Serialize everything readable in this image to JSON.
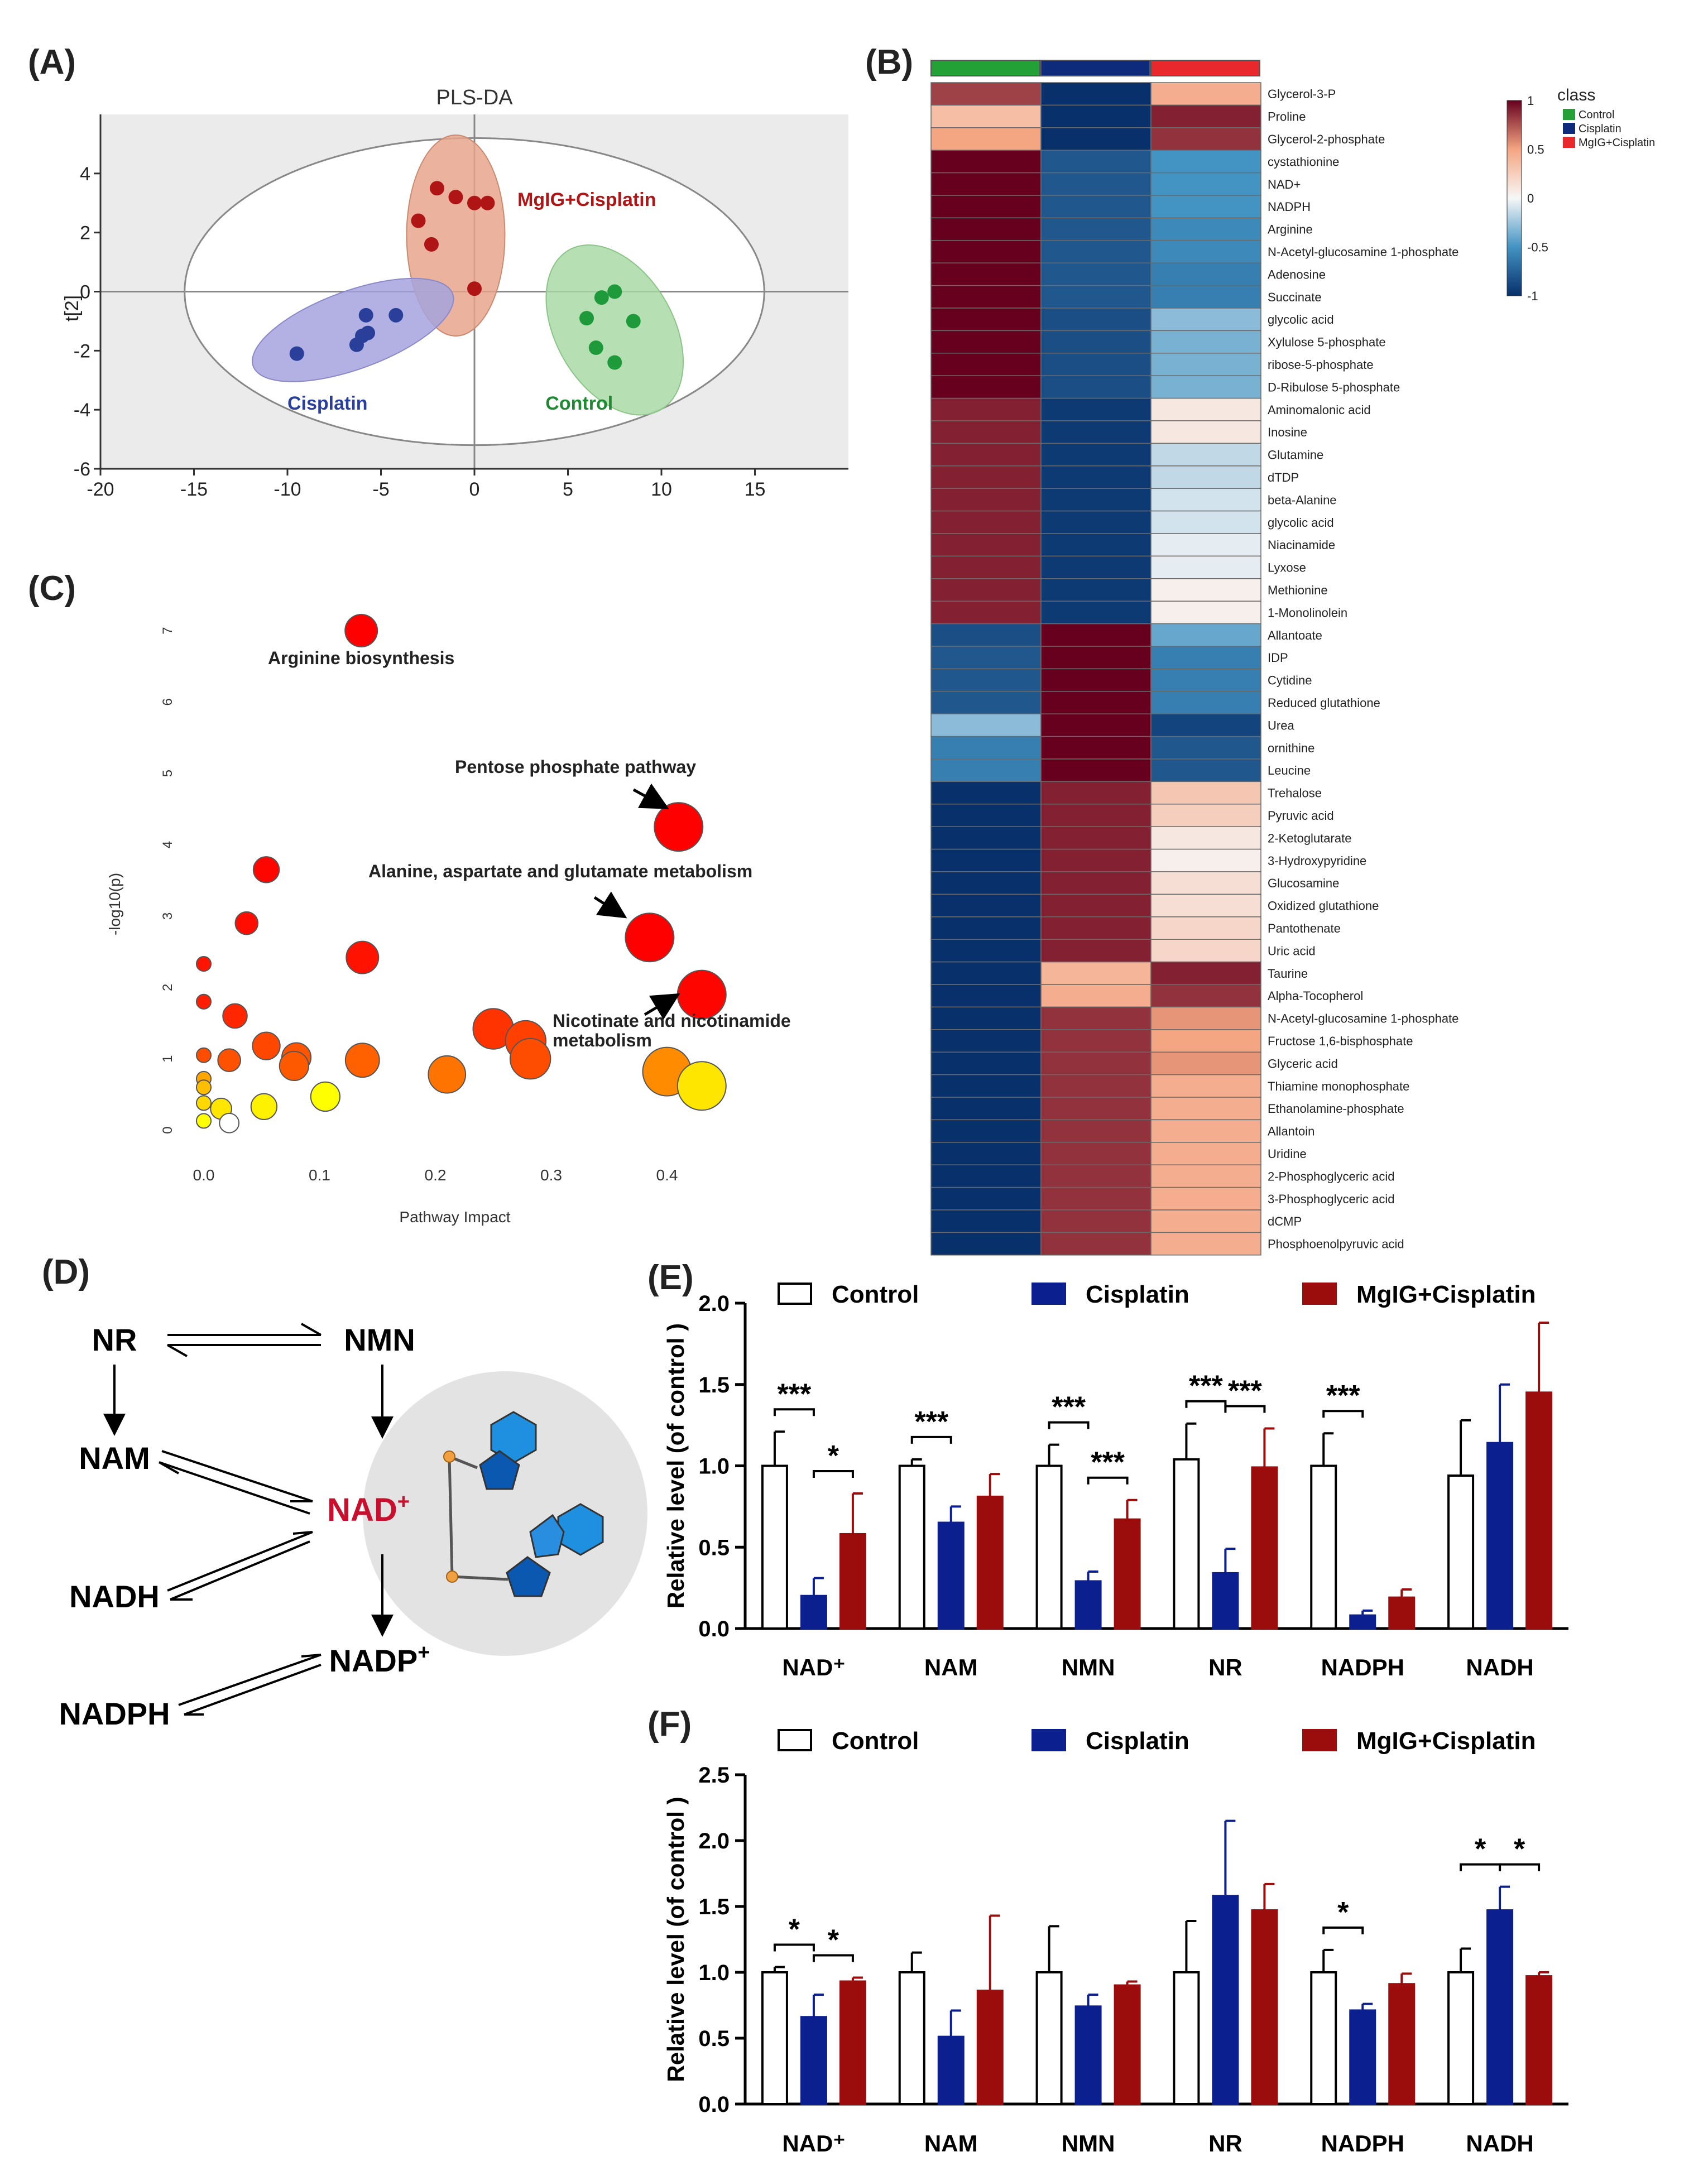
{
  "panels": {
    "A": "(A)",
    "B": "(B)",
    "C": "(C)",
    "D": "(D)",
    "E": "(E)",
    "F": "(F)"
  },
  "colors": {
    "control": "#ffffff",
    "cisplatin": "#0b1f8f",
    "mglg": "#9b0c0c",
    "ctrl_dot": "#1f9a3a",
    "cis_dot": "#2a3f9a",
    "mglg_dot": "#b01515",
    "ctrl_ell": "#a9dba6",
    "cis_ell": "#a6a3de",
    "mglg_ell": "#e8a58c"
  },
  "chart_data": [
    {
      "id": "A",
      "type": "scatter",
      "title": "PLS-DA",
      "xlabel": "",
      "ylabel": "t[2]",
      "xlim": [
        -20,
        20
      ],
      "ylim": [
        -6,
        6
      ],
      "xticks": [
        "-20",
        "-15",
        "-10",
        "-5",
        "0",
        "5",
        "10",
        "15"
      ],
      "yticks": [
        "-6",
        "-4",
        "-2",
        "0",
        "2",
        "4"
      ],
      "series": [
        {
          "name": "MgIG+Cisplatin",
          "points": [
            [
              -3,
              2.4
            ],
            [
              -2,
              3.5
            ],
            [
              -1,
              3.2
            ],
            [
              0,
              3.0
            ],
            [
              0.7,
              3.0
            ],
            [
              -2.3,
              1.6
            ],
            [
              0,
              0.1
            ]
          ]
        },
        {
          "name": "Cisplatin",
          "points": [
            [
              -9.5,
              -2.1
            ],
            [
              -5.8,
              -0.8
            ],
            [
              -4.2,
              -0.8
            ],
            [
              -6.0,
              -1.5
            ],
            [
              -5.7,
              -1.4
            ],
            [
              -6.3,
              -1.8
            ]
          ]
        },
        {
          "name": "Control",
          "points": [
            [
              6.8,
              -0.2
            ],
            [
              7.5,
              0
            ],
            [
              6.0,
              -0.9
            ],
            [
              8.5,
              -1.0
            ],
            [
              6.5,
              -1.9
            ],
            [
              7.5,
              -2.4
            ]
          ]
        }
      ]
    },
    {
      "id": "B",
      "type": "heatmap",
      "legend_title": "class",
      "legend_entries": [
        "Control",
        "Cisplatin",
        "MgIG+Cisplatin"
      ],
      "scale_ticks": [
        "1",
        "0.5",
        "0",
        "-0.5",
        "-1"
      ],
      "columns": [
        "Control",
        "Cisplatin",
        "MgIG+Cisplatin"
      ],
      "rows": [
        "Glycerol-3-P",
        "Proline",
        "Glycerol-2-phosphate",
        "cystathionine",
        "NAD+",
        "NADPH",
        "Arginine",
        "N-Acetyl-glucosamine 1-phosphate",
        "Adenosine",
        "Succinate",
        "glycolic acid",
        "Xylulose 5-phosphate",
        "ribose-5-phosphate",
        "D-Ribulose 5-phosphate",
        "Aminomalonic acid",
        "Inosine",
        "Glutamine",
        "dTDP",
        "beta-Alanine",
        "glycolic acid",
        "Niacinamide",
        "Lyxose",
        "Methionine",
        "1-Monolinolein",
        "Allantoate",
        "IDP",
        "Cytidine",
        "Reduced glutathione",
        "Urea",
        "ornithine",
        "Leucine",
        "Trehalose",
        "Pyruvic acid",
        "2-Ketoglutarate",
        "3-Hydroxypyridine",
        "Glucosamine",
        "Oxidized glutathione",
        "Pantothenate",
        "Uric acid",
        "Taurine",
        "Alpha-Tocopherol",
        "N-Acetyl-glucosamine 1-phosphate",
        "Fructose 1,6-bisphosphate",
        "Glyceric acid",
        "Thiamine monophosphate",
        "Ethanolamine-phosphate",
        "Allantoin",
        "Uridine",
        "2-Phosphoglyceric acid",
        "3-Phosphoglyceric acid",
        "dCMP",
        "Phosphoenolpyruvic acid"
      ],
      "values": [
        [
          0.8,
          -1,
          0.45
        ],
        [
          0.35,
          -1,
          0.9
        ],
        [
          0.5,
          -1,
          0.85
        ],
        [
          1,
          -0.8,
          -0.5
        ],
        [
          1,
          -0.8,
          -0.5
        ],
        [
          1,
          -0.8,
          -0.5
        ],
        [
          1,
          -0.8,
          -0.55
        ],
        [
          1,
          -0.8,
          -0.55
        ],
        [
          1,
          -0.8,
          -0.6
        ],
        [
          1,
          -0.8,
          -0.6
        ],
        [
          1,
          -0.85,
          -0.3
        ],
        [
          1,
          -0.85,
          -0.35
        ],
        [
          1,
          -0.85,
          -0.35
        ],
        [
          1,
          -0.85,
          -0.35
        ],
        [
          0.9,
          -0.95,
          0.1
        ],
        [
          0.9,
          -0.95,
          0.1
        ],
        [
          0.9,
          -0.95,
          -0.15
        ],
        [
          0.9,
          -0.95,
          -0.15
        ],
        [
          0.9,
          -0.95,
          -0.1
        ],
        [
          0.9,
          -0.95,
          -0.1
        ],
        [
          0.9,
          -0.95,
          -0.05
        ],
        [
          0.9,
          -0.95,
          -0.05
        ],
        [
          0.9,
          -0.95,
          0.05
        ],
        [
          0.9,
          -0.95,
          0.05
        ],
        [
          -0.85,
          1,
          -0.4
        ],
        [
          -0.8,
          1,
          -0.6
        ],
        [
          -0.8,
          1,
          -0.6
        ],
        [
          -0.8,
          1,
          -0.6
        ],
        [
          -0.3,
          1,
          -0.9
        ],
        [
          -0.6,
          1,
          -0.8
        ],
        [
          -0.6,
          1,
          -0.8
        ],
        [
          -1,
          0.9,
          0.3
        ],
        [
          -1,
          0.9,
          0.25
        ],
        [
          -1,
          0.9,
          0.1
        ],
        [
          -1,
          0.9,
          0.05
        ],
        [
          -1,
          0.9,
          0.15
        ],
        [
          -1,
          0.9,
          0.15
        ],
        [
          -1,
          0.9,
          0.2
        ],
        [
          -1,
          0.9,
          0.2
        ],
        [
          -1,
          0.4,
          0.9
        ],
        [
          -1,
          0.45,
          0.85
        ],
        [
          -1,
          0.85,
          0.55
        ],
        [
          -1,
          0.85,
          0.5
        ],
        [
          -1,
          0.85,
          0.55
        ],
        [
          -1,
          0.85,
          0.45
        ],
        [
          -1,
          0.85,
          0.45
        ],
        [
          -1,
          0.85,
          0.45
        ],
        [
          -1,
          0.85,
          0.45
        ],
        [
          -1,
          0.85,
          0.45
        ],
        [
          -1,
          0.85,
          0.45
        ],
        [
          -1,
          0.85,
          0.45
        ],
        [
          -1,
          0.85,
          0.45
        ]
      ]
    },
    {
      "id": "C",
      "type": "scatter",
      "xlabel": "Pathway Impact",
      "ylabel": "-log10(p)",
      "xlim": [
        0,
        0.45
      ],
      "ylim": [
        0,
        7
      ],
      "xticks": [
        "0.0",
        "0.1",
        "0.2",
        "0.3",
        "0.4"
      ],
      "yticks": [
        "0",
        "1",
        "2",
        "3",
        "4",
        "5",
        "6",
        "7"
      ],
      "annotations": [
        "Arginine biosynthesis",
        "Pentose phosphate pathway",
        "Alanine, aspartate and glutamate metabolism",
        "Nicotinate and nicotinamide",
        "metabolism"
      ],
      "points": [
        {
          "x": 0.136,
          "y": 7.0,
          "r": 20,
          "c": 0.0
        },
        {
          "x": 0.41,
          "y": 4.25,
          "r": 30,
          "c": 0.0
        },
        {
          "x": 0.385,
          "y": 2.7,
          "r": 30,
          "c": 0.0
        },
        {
          "x": 0.43,
          "y": 1.9,
          "r": 30,
          "c": 0.02
        },
        {
          "x": 0.054,
          "y": 3.65,
          "r": 16,
          "c": 0.02
        },
        {
          "x": 0.037,
          "y": 2.9,
          "r": 14,
          "c": 0.05
        },
        {
          "x": 0.137,
          "y": 2.42,
          "r": 20,
          "c": 0.07
        },
        {
          "x": 0.0,
          "y": 2.33,
          "r": 9,
          "c": 0.08
        },
        {
          "x": 0.0,
          "y": 1.8,
          "r": 9,
          "c": 0.12
        },
        {
          "x": 0.027,
          "y": 1.6,
          "r": 15,
          "c": 0.15
        },
        {
          "x": 0.25,
          "y": 1.42,
          "r": 25,
          "c": 0.2
        },
        {
          "x": 0.278,
          "y": 1.25,
          "r": 25,
          "c": 0.25
        },
        {
          "x": 0.282,
          "y": 1.0,
          "r": 25,
          "c": 0.3
        },
        {
          "x": 0.054,
          "y": 1.18,
          "r": 17,
          "c": 0.28
        },
        {
          "x": 0.0,
          "y": 1.05,
          "r": 9,
          "c": 0.3
        },
        {
          "x": 0.022,
          "y": 0.98,
          "r": 14,
          "c": 0.32
        },
        {
          "x": 0.08,
          "y": 1.02,
          "r": 18,
          "c": 0.33
        },
        {
          "x": 0.078,
          "y": 0.9,
          "r": 18,
          "c": 0.35
        },
        {
          "x": 0.137,
          "y": 0.98,
          "r": 21,
          "c": 0.38
        },
        {
          "x": 0.21,
          "y": 0.78,
          "r": 23,
          "c": 0.45
        },
        {
          "x": 0.4,
          "y": 0.82,
          "r": 30,
          "c": 0.55
        },
        {
          "x": 0.43,
          "y": 0.62,
          "r": 30,
          "c": 0.9
        },
        {
          "x": 0.0,
          "y": 0.72,
          "r": 9,
          "c": 0.65
        },
        {
          "x": 0.0,
          "y": 0.6,
          "r": 9,
          "c": 0.75
        },
        {
          "x": 0.0,
          "y": 0.38,
          "r": 9,
          "c": 0.85
        },
        {
          "x": 0.015,
          "y": 0.3,
          "r": 13,
          "c": 0.9
        },
        {
          "x": 0.052,
          "y": 0.33,
          "r": 16,
          "c": 0.95
        },
        {
          "x": 0.105,
          "y": 0.47,
          "r": 18,
          "c": 1.0
        },
        {
          "x": 0.0,
          "y": 0.13,
          "r": 9,
          "c": 1.0
        },
        {
          "x": 0.022,
          "y": 0.1,
          "r": 12,
          "c": 1.1
        }
      ]
    },
    {
      "id": "E",
      "type": "bar",
      "ylabel": "Relative level (of control )",
      "ylim": [
        0,
        2.0
      ],
      "yticks": [
        "0.0",
        "0.5",
        "1.0",
        "1.5",
        "2.0"
      ],
      "legend": [
        "Control",
        "Cisplatin",
        "MgIG+Cisplatin"
      ],
      "categories": [
        "NAD⁺",
        "NAM",
        "NMN",
        "NR",
        "NADPH",
        "NADH"
      ],
      "series": [
        {
          "name": "Control",
          "values": [
            1.0,
            1.0,
            1.0,
            1.04,
            1.0,
            0.94
          ],
          "errors": [
            0.21,
            0.04,
            0.13,
            0.22,
            0.2,
            0.34
          ]
        },
        {
          "name": "Cisplatin",
          "values": [
            0.2,
            0.65,
            0.29,
            0.34,
            0.08,
            1.14
          ],
          "errors": [
            0.11,
            0.1,
            0.06,
            0.15,
            0.03,
            0.36
          ]
        },
        {
          "name": "MgIG+Cisplatin",
          "values": [
            0.58,
            0.81,
            0.67,
            0.99,
            0.19,
            1.45
          ],
          "errors": [
            0.25,
            0.14,
            0.12,
            0.24,
            0.05,
            0.43
          ]
        }
      ],
      "significance": [
        {
          "cat": 0,
          "pair": "ctrl-cis",
          "label": "***"
        },
        {
          "cat": 0,
          "pair": "cis-mglg",
          "label": "*"
        },
        {
          "cat": 1,
          "pair": "ctrl-cis",
          "label": "***"
        },
        {
          "cat": 2,
          "pair": "ctrl-cis",
          "label": "***"
        },
        {
          "cat": 2,
          "pair": "cis-mglg",
          "label": "***"
        },
        {
          "cat": 3,
          "pair": "ctrl-cis",
          "label": "***"
        },
        {
          "cat": 3,
          "pair": "cis-mglg",
          "label": "***"
        },
        {
          "cat": 4,
          "pair": "ctrl-cis",
          "label": "***"
        }
      ]
    },
    {
      "id": "F",
      "type": "bar",
      "ylabel": "Relative level (of control )",
      "ylim": [
        0,
        2.5
      ],
      "yticks": [
        "0.0",
        "0.5",
        "1.0",
        "1.5",
        "2.0",
        "2.5"
      ],
      "legend": [
        "Control",
        "Cisplatin",
        "MgIG+Cisplatin"
      ],
      "categories": [
        "NAD⁺",
        "NAM",
        "NMN",
        "NR",
        "NADPH",
        "NADH"
      ],
      "series": [
        {
          "name": "Control",
          "values": [
            1.0,
            1.0,
            1.0,
            1.0,
            1.0,
            1.0
          ],
          "errors": [
            0.04,
            0.15,
            0.35,
            0.39,
            0.17,
            0.18
          ]
        },
        {
          "name": "Cisplatin",
          "values": [
            0.66,
            0.51,
            0.74,
            1.58,
            0.71,
            1.47
          ],
          "errors": [
            0.17,
            0.2,
            0.09,
            0.57,
            0.05,
            0.18
          ]
        },
        {
          "name": "MgIG+Cisplatin",
          "values": [
            0.93,
            0.86,
            0.9,
            1.47,
            0.91,
            0.97
          ],
          "errors": [
            0.03,
            0.57,
            0.03,
            0.2,
            0.08,
            0.03
          ]
        }
      ],
      "significance": [
        {
          "cat": 0,
          "pair": "ctrl-cis",
          "label": "*"
        },
        {
          "cat": 0,
          "pair": "cis-mglg",
          "label": "*"
        },
        {
          "cat": 4,
          "pair": "ctrl-cis",
          "label": "*"
        },
        {
          "cat": 5,
          "pair": "ctrl-cis",
          "label": "*"
        },
        {
          "cat": 5,
          "pair": "cis-mglg",
          "label": "*"
        }
      ]
    }
  ],
  "pathway_D": {
    "nodes": [
      "NR",
      "NMN",
      "NAM",
      "NAD",
      "+",
      "NADH",
      "NADP",
      "+",
      "NADPH"
    ]
  }
}
